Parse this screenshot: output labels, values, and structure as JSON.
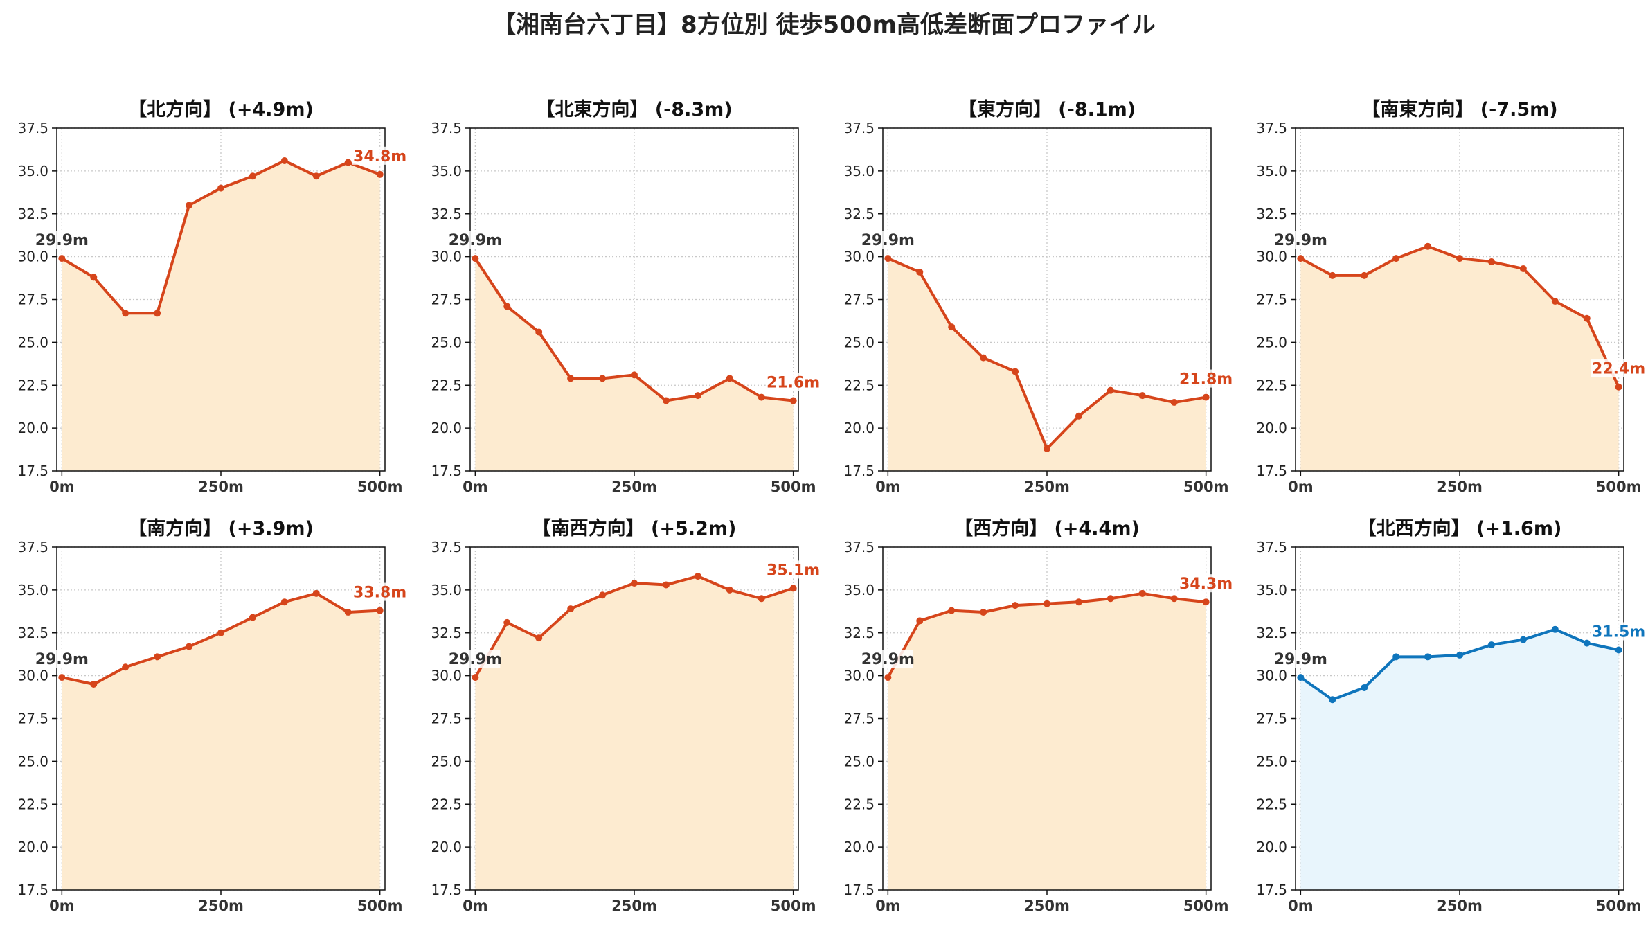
{
  "title": "【湘南台六丁目】8方位別 徒歩500m高低差断面プロファイル",
  "colors": {
    "down": "#d6451b",
    "down_fill": "#fdebd0",
    "up": "#0f75bc",
    "up_fill": "#e8f5fc",
    "start_label": "#333333"
  },
  "chart_data": [
    {
      "type": "area",
      "title": "【北方向】 (+4.9m)",
      "color_key": "down",
      "x": [
        0,
        50,
        100,
        150,
        200,
        250,
        300,
        350,
        400,
        450,
        500
      ],
      "values": [
        29.9,
        28.8,
        26.7,
        26.7,
        33.0,
        34.0,
        34.7,
        35.6,
        34.7,
        35.5,
        34.8
      ],
      "start_label": "29.9m",
      "end_label": "34.8m",
      "ylim": [
        17.5,
        37.5
      ],
      "yticks": [
        "17.5",
        "20.0",
        "22.5",
        "25.0",
        "27.5",
        "30.0",
        "32.5",
        "35.0",
        "37.5"
      ],
      "xlim": [
        -8,
        508
      ],
      "xticks": [
        0,
        250,
        500
      ],
      "xtick_labels": [
        "0m",
        "250m",
        "500m"
      ],
      "grid": true
    },
    {
      "type": "area",
      "title": "【北東方向】 (-8.3m)",
      "color_key": "down",
      "x": [
        0,
        50,
        100,
        150,
        200,
        250,
        300,
        350,
        400,
        450,
        500
      ],
      "values": [
        29.9,
        27.1,
        25.6,
        22.9,
        22.9,
        23.1,
        21.6,
        21.9,
        22.9,
        21.8,
        21.6
      ],
      "start_label": "29.9m",
      "end_label": "21.6m",
      "ylim": [
        17.5,
        37.5
      ],
      "yticks": [
        "17.5",
        "20.0",
        "22.5",
        "25.0",
        "27.5",
        "30.0",
        "32.5",
        "35.0",
        "37.5"
      ],
      "xlim": [
        -8,
        508
      ],
      "xticks": [
        0,
        250,
        500
      ],
      "xtick_labels": [
        "0m",
        "250m",
        "500m"
      ],
      "grid": true
    },
    {
      "type": "area",
      "title": "【東方向】 (-8.1m)",
      "color_key": "down",
      "x": [
        0,
        50,
        100,
        150,
        200,
        250,
        300,
        350,
        400,
        450,
        500
      ],
      "values": [
        29.9,
        29.1,
        25.9,
        24.1,
        23.3,
        18.8,
        20.7,
        22.2,
        21.9,
        21.5,
        21.8
      ],
      "start_label": "29.9m",
      "end_label": "21.8m",
      "ylim": [
        17.5,
        37.5
      ],
      "yticks": [
        "17.5",
        "20.0",
        "22.5",
        "25.0",
        "27.5",
        "30.0",
        "32.5",
        "35.0",
        "37.5"
      ],
      "xlim": [
        -8,
        508
      ],
      "xticks": [
        0,
        250,
        500
      ],
      "xtick_labels": [
        "0m",
        "250m",
        "500m"
      ],
      "grid": true
    },
    {
      "type": "area",
      "title": "【南東方向】 (-7.5m)",
      "color_key": "down",
      "x": [
        0,
        50,
        100,
        150,
        200,
        250,
        300,
        350,
        400,
        450,
        500
      ],
      "values": [
        29.9,
        28.9,
        28.9,
        29.9,
        30.6,
        29.9,
        29.7,
        29.3,
        27.4,
        26.4,
        22.4
      ],
      "start_label": "29.9m",
      "end_label": "22.4m",
      "ylim": [
        17.5,
        37.5
      ],
      "yticks": [
        "17.5",
        "20.0",
        "22.5",
        "25.0",
        "27.5",
        "30.0",
        "32.5",
        "35.0",
        "37.5"
      ],
      "xlim": [
        -8,
        508
      ],
      "xticks": [
        0,
        250,
        500
      ],
      "xtick_labels": [
        "0m",
        "250m",
        "500m"
      ],
      "grid": true
    },
    {
      "type": "area",
      "title": "【南方向】 (+3.9m)",
      "color_key": "down",
      "x": [
        0,
        50,
        100,
        150,
        200,
        250,
        300,
        350,
        400,
        450,
        500
      ],
      "values": [
        29.9,
        29.5,
        30.5,
        31.1,
        31.7,
        32.5,
        33.4,
        34.3,
        34.8,
        33.7,
        33.8
      ],
      "start_label": "29.9m",
      "end_label": "33.8m",
      "ylim": [
        17.5,
        37.5
      ],
      "yticks": [
        "17.5",
        "20.0",
        "22.5",
        "25.0",
        "27.5",
        "30.0",
        "32.5",
        "35.0",
        "37.5"
      ],
      "xlim": [
        -8,
        508
      ],
      "xticks": [
        0,
        250,
        500
      ],
      "xtick_labels": [
        "0m",
        "250m",
        "500m"
      ],
      "grid": true
    },
    {
      "type": "area",
      "title": "【南西方向】 (+5.2m)",
      "color_key": "down",
      "x": [
        0,
        50,
        100,
        150,
        200,
        250,
        300,
        350,
        400,
        450,
        500
      ],
      "values": [
        29.9,
        33.1,
        32.2,
        33.9,
        34.7,
        35.4,
        35.3,
        35.8,
        35.0,
        34.5,
        35.1
      ],
      "start_label": "29.9m",
      "end_label": "35.1m",
      "ylim": [
        17.5,
        37.5
      ],
      "yticks": [
        "17.5",
        "20.0",
        "22.5",
        "25.0",
        "27.5",
        "30.0",
        "32.5",
        "35.0",
        "37.5"
      ],
      "xlim": [
        -8,
        508
      ],
      "xticks": [
        0,
        250,
        500
      ],
      "xtick_labels": [
        "0m",
        "250m",
        "500m"
      ],
      "grid": true
    },
    {
      "type": "area",
      "title": "【西方向】 (+4.4m)",
      "color_key": "down",
      "x": [
        0,
        50,
        100,
        150,
        200,
        250,
        300,
        350,
        400,
        450,
        500
      ],
      "values": [
        29.9,
        33.2,
        33.8,
        33.7,
        34.1,
        34.2,
        34.3,
        34.5,
        34.8,
        34.5,
        34.3
      ],
      "start_label": "29.9m",
      "end_label": "34.3m",
      "ylim": [
        17.5,
        37.5
      ],
      "yticks": [
        "17.5",
        "20.0",
        "22.5",
        "25.0",
        "27.5",
        "30.0",
        "32.5",
        "35.0",
        "37.5"
      ],
      "xlim": [
        -8,
        508
      ],
      "xticks": [
        0,
        250,
        500
      ],
      "xtick_labels": [
        "0m",
        "250m",
        "500m"
      ],
      "grid": true
    },
    {
      "type": "area",
      "title": "【北西方向】 (+1.6m)",
      "color_key": "up",
      "x": [
        0,
        50,
        100,
        150,
        200,
        250,
        300,
        350,
        400,
        450,
        500
      ],
      "values": [
        29.9,
        28.6,
        29.3,
        31.1,
        31.1,
        31.2,
        31.8,
        32.1,
        32.7,
        31.9,
        31.5
      ],
      "start_label": "29.9m",
      "end_label": "31.5m",
      "ylim": [
        17.5,
        37.5
      ],
      "yticks": [
        "17.5",
        "20.0",
        "22.5",
        "25.0",
        "27.5",
        "30.0",
        "32.5",
        "35.0",
        "37.5"
      ],
      "xlim": [
        -8,
        508
      ],
      "xticks": [
        0,
        250,
        500
      ],
      "xtick_labels": [
        "0m",
        "250m",
        "500m"
      ],
      "grid": true
    }
  ]
}
